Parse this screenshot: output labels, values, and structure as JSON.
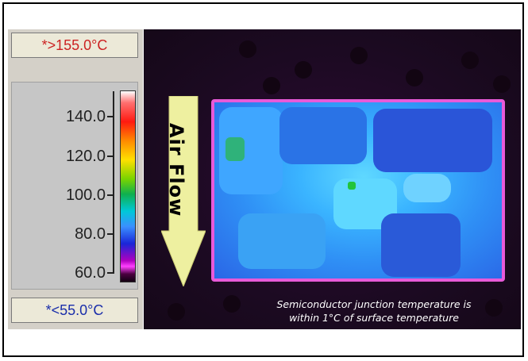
{
  "legend": {
    "max_label": "*>155.0°C",
    "min_label": "*<55.0°C",
    "ticks": [
      "140.0",
      "120.0",
      "100.0",
      "80.0",
      "60.0"
    ]
  },
  "thermal_image": {
    "arrow_label": "Air Flow",
    "caption_line1": "Semiconductor junction temperature is",
    "caption_line2": "within 1°C of surface temperature"
  },
  "colors": {
    "max_text": "#cc2222",
    "min_text": "#1a2eaa",
    "board_outline": "#e85ad8",
    "arrow_fill": "#eef0a0"
  },
  "icons": [
    "air-flow-arrow-icon"
  ]
}
